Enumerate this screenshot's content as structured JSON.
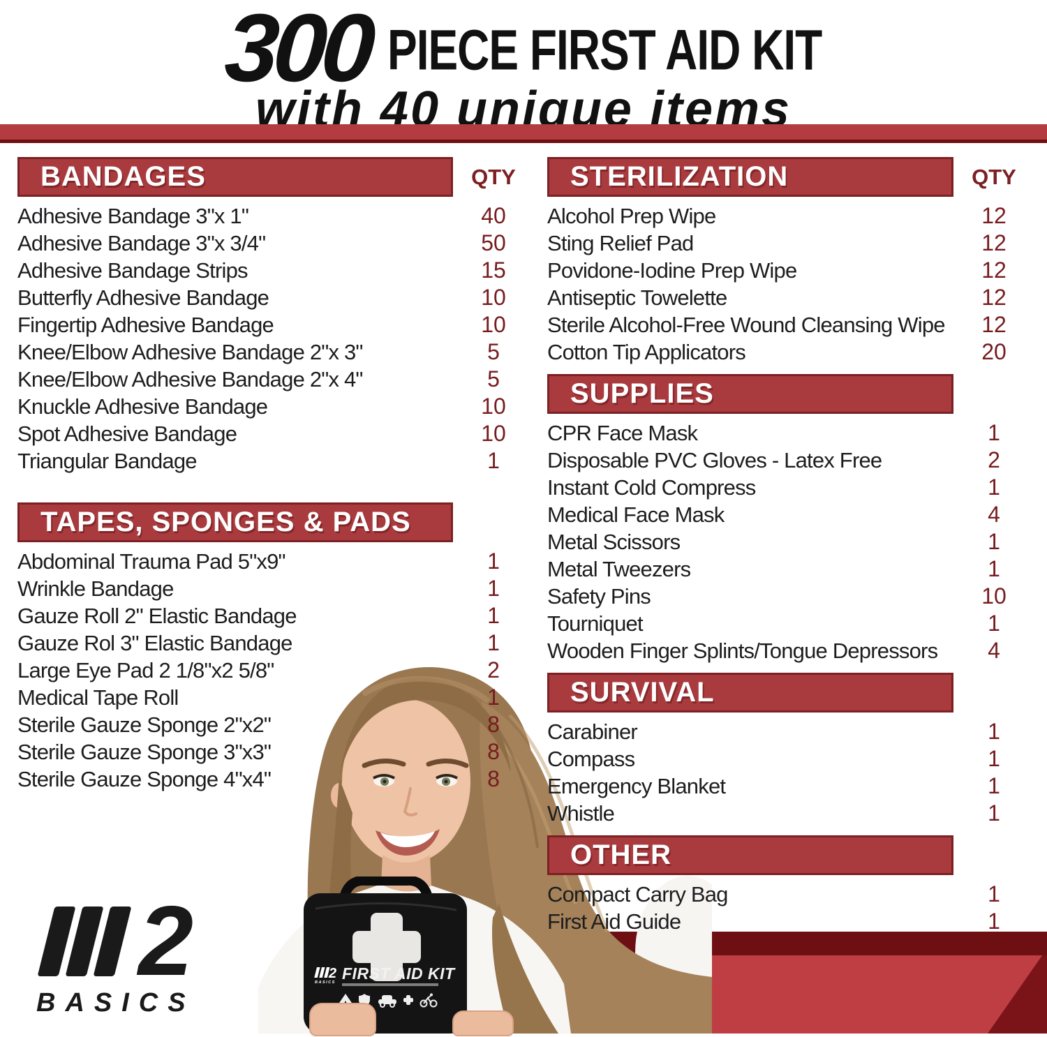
{
  "colors": {
    "accent_red": "#A93B3F",
    "accent_dark": "#7C2023",
    "divider_red": "#B23C40",
    "qty_number": "#771B1E",
    "band_dark": "#6E0F14",
    "poly_red": "#BE3E44",
    "corner_dark": "#7A1418"
  },
  "title": {
    "big_number": "300",
    "heading": "PIECE FIRST AID KIT",
    "subheading": "with 40 unique items"
  },
  "qty_header": "QTY",
  "columns": {
    "left": [
      {
        "title": "BANDAGES",
        "show_qty": true,
        "items": [
          {
            "name": "Adhesive Bandage 3\"x 1\"",
            "qty": "40"
          },
          {
            "name": "Adhesive Bandage 3\"x 3/4\"",
            "qty": "50"
          },
          {
            "name": "Adhesive Bandage Strips",
            "qty": "15"
          },
          {
            "name": "Butterfly Adhesive Bandage",
            "qty": "10"
          },
          {
            "name": "Fingertip Adhesive Bandage",
            "qty": "10"
          },
          {
            "name": "Knee/Elbow Adhesive Bandage 2\"x 3\"",
            "qty": "5"
          },
          {
            "name": "Knee/Elbow Adhesive Bandage 2\"x 4\"",
            "qty": "5"
          },
          {
            "name": "Knuckle Adhesive Bandage",
            "qty": "10"
          },
          {
            "name": "Spot Adhesive Bandage",
            "qty": "10"
          },
          {
            "name": "Triangular Bandage",
            "qty": "1"
          }
        ]
      },
      {
        "title": "TAPES, SPONGES & PADS",
        "show_qty": false,
        "items": [
          {
            "name": "Abdominal Trauma Pad 5\"x9\"",
            "qty": "1"
          },
          {
            "name": "Wrinkle Bandage",
            "qty": "1"
          },
          {
            "name": "Gauze Roll 2\" Elastic Bandage",
            "qty": "1"
          },
          {
            "name": "Gauze Rol 3\" Elastic Bandage",
            "qty": "1"
          },
          {
            "name": "Large Eye Pad 2 1/8\"x2 5/8\"",
            "qty": "2"
          },
          {
            "name": "Medical Tape Roll",
            "qty": "1"
          },
          {
            "name": "Sterile Gauze Sponge 2\"x2\"",
            "qty": "8"
          },
          {
            "name": "Sterile Gauze Sponge 3\"x3\"",
            "qty": "8"
          },
          {
            "name": "Sterile Gauze Sponge 4\"x4\"",
            "qty": "8"
          }
        ]
      }
    ],
    "right": [
      {
        "title": "STERILIZATION",
        "show_qty": true,
        "items": [
          {
            "name": "Alcohol Prep Wipe",
            "qty": "12"
          },
          {
            "name": "Sting Relief Pad",
            "qty": "12"
          },
          {
            "name": "Povidone-Iodine Prep Wipe",
            "qty": "12"
          },
          {
            "name": "Antiseptic Towelette",
            "qty": "12"
          },
          {
            "name": "Sterile Alcohol-Free Wound Cleansing Wipe",
            "qty": "12"
          },
          {
            "name": "Cotton Tip Applicators",
            "qty": "20"
          }
        ]
      },
      {
        "title": "SUPPLIES",
        "show_qty": false,
        "items": [
          {
            "name": "CPR Face Mask",
            "qty": "1"
          },
          {
            "name": "Disposable PVC Gloves - Latex Free",
            "qty": "2"
          },
          {
            "name": "Instant Cold Compress",
            "qty": "1"
          },
          {
            "name": "Medical Face Mask",
            "qty": "4"
          },
          {
            "name": "Metal Scissors",
            "qty": "1"
          },
          {
            "name": "Metal Tweezers",
            "qty": "1"
          },
          {
            "name": "Safety Pins",
            "qty": "10"
          },
          {
            "name": "Tourniquet",
            "qty": "1"
          },
          {
            "name": "Wooden Finger Splints/Tongue Depressors",
            "qty": "4"
          }
        ]
      },
      {
        "title": "SURVIVAL",
        "show_qty": false,
        "items": [
          {
            "name": "Carabiner",
            "qty": "1"
          },
          {
            "name": "Compass",
            "qty": "1"
          },
          {
            "name": "Emergency Blanket",
            "qty": "1"
          },
          {
            "name": "Whistle",
            "qty": "1"
          }
        ]
      },
      {
        "title": "OTHER",
        "show_qty": false,
        "items": [
          {
            "name": "Compact Carry Bag",
            "qty": "1"
          },
          {
            "name": "First Aid Guide",
            "qty": "1"
          }
        ]
      }
    ]
  },
  "brand_logo": {
    "number": "2",
    "name": "BASICS"
  },
  "bag": {
    "brand_number": "2",
    "brand_name": "BASICS",
    "label": "FIRST AID KIT",
    "icons": [
      "tent",
      "shield",
      "car",
      "medical-cross",
      "cyclist"
    ]
  }
}
